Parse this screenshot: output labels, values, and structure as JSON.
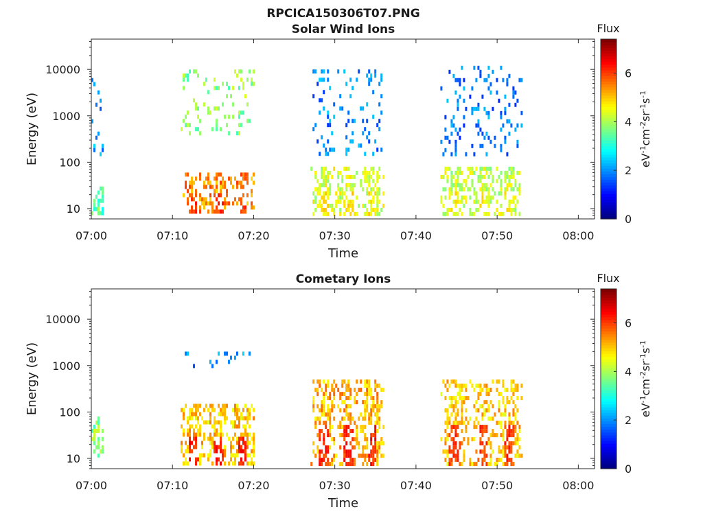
{
  "figure_title": "RPCICA150306T07.PNG",
  "colors": {
    "axis": "#262626",
    "background": "#ffffff"
  },
  "chart_data": [
    {
      "type": "heatmap",
      "title": "Solar Wind Ions",
      "xlabel": "Time",
      "ylabel": "Energy (eV)",
      "y_scale": "log",
      "ylim": [
        6,
        45000
      ],
      "xlim_minutes": [
        0,
        62
      ],
      "x_ticks": [
        "07:00",
        "07:10",
        "07:20",
        "07:30",
        "07:40",
        "07:50",
        "08:00"
      ],
      "y_ticks": [
        "10",
        "100",
        "1000",
        "10000"
      ],
      "colorbar": {
        "label": "Flux",
        "units": "eV-1cm-2sr-1s-1",
        "range": [
          0,
          7.4
        ],
        "ticks": [
          "0",
          "2",
          "4",
          "6"
        ],
        "colormap": "jet"
      },
      "bursts": [
        {
          "time": "07:00",
          "low": {
            "e": [
              8,
              30
            ],
            "flux": 3.4
          },
          "high": {
            "e": [
              150,
              8000
            ],
            "flux": 2.0
          }
        },
        {
          "time": "07:11-07:20",
          "low": {
            "e": [
              8,
              60
            ],
            "flux": 5.5,
            "peak": 6.4
          },
          "high": {
            "e": [
              400,
              10000
            ],
            "flux": 3.8
          }
        },
        {
          "time": "07:27-07:36",
          "low": {
            "e": [
              7,
              80
            ],
            "flux": 4.3,
            "peak": 5.2
          },
          "high": {
            "e": [
              150,
              10000
            ],
            "flux": 1.9
          }
        },
        {
          "time": "07:43-07:53",
          "low": {
            "e": [
              8,
              80
            ],
            "flux": 4.2,
            "peak": 5.0
          },
          "high": {
            "e": [
              150,
              12000
            ],
            "flux": 1.8
          }
        }
      ]
    },
    {
      "type": "heatmap",
      "title": "Cometary Ions",
      "xlabel": "Time",
      "ylabel": "Energy (eV)",
      "y_scale": "log",
      "ylim": [
        6,
        45000
      ],
      "xlim_minutes": [
        0,
        62
      ],
      "x_ticks": [
        "07:00",
        "07:10",
        "07:20",
        "07:30",
        "07:40",
        "07:50",
        "08:00"
      ],
      "y_ticks": [
        "10",
        "100",
        "1000",
        "10000"
      ],
      "colorbar": {
        "label": "Flux",
        "units": "eV-1cm-2sr-1s-1",
        "range": [
          0,
          7.4
        ],
        "ticks": [
          "0",
          "2",
          "4",
          "6"
        ],
        "colormap": "jet"
      },
      "bursts": [
        {
          "time": "07:00",
          "low": {
            "e": [
              12,
              80
            ],
            "flux": 3.8
          },
          "high": null
        },
        {
          "time": "07:11-07:20",
          "low": {
            "e": [
              7,
              150
            ],
            "flux": 5.0,
            "peak": 6.7
          },
          "high": {
            "e": [
              900,
              2000
            ],
            "flux": 2.0
          }
        },
        {
          "time": "07:27-07:36",
          "low": {
            "e": [
              7,
              500
            ],
            "flux": 5.2,
            "peak": 6.6
          },
          "high": null
        },
        {
          "time": "07:43-07:53",
          "low": {
            "e": [
              7,
              500
            ],
            "flux": 5.0,
            "peak": 6.4
          },
          "high": null
        }
      ]
    }
  ]
}
